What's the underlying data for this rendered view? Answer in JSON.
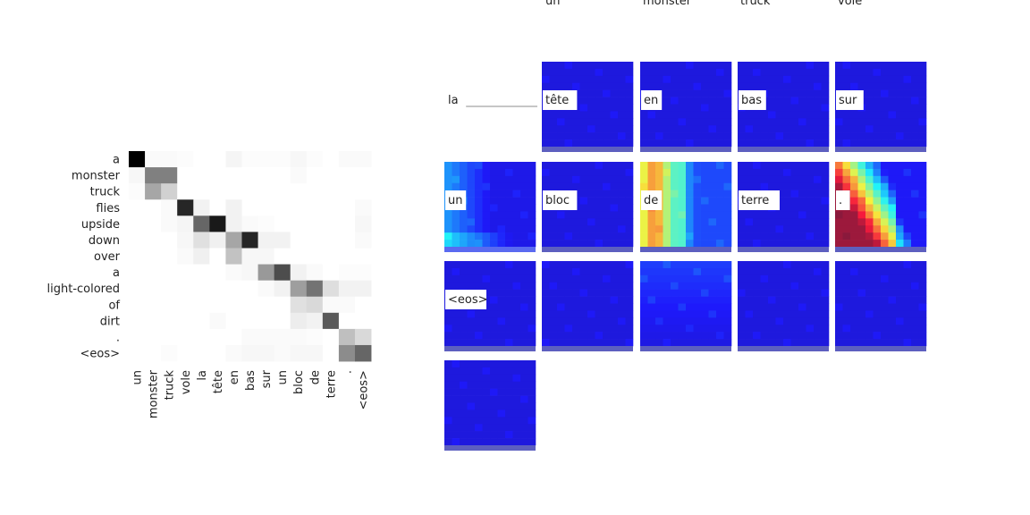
{
  "heatmap": {
    "rows": [
      "a",
      "monster",
      "truck",
      "flies",
      "upside",
      "down",
      "over",
      "a",
      "light-colored",
      "of",
      "dirt",
      ".",
      "<eos>"
    ],
    "cols": [
      "un",
      "monster",
      "truck",
      "vole",
      "la",
      "tête",
      "en",
      "bas",
      "sur",
      "un",
      "bloc",
      "de",
      "terre",
      ".",
      "<eos>"
    ]
  },
  "top_labels": [
    "un",
    "monster",
    "truck",
    "vole"
  ],
  "tiles": [
    {
      "label": "la",
      "kind": "none"
    },
    {
      "label": "tête",
      "kind": "dark"
    },
    {
      "label": "en",
      "kind": "dark"
    },
    {
      "label": "bas",
      "kind": "dark"
    },
    {
      "label": "sur",
      "kind": "dark"
    },
    {
      "label": "un",
      "kind": "edge-left"
    },
    {
      "label": "bloc",
      "kind": "dark"
    },
    {
      "label": "de",
      "kind": "bands"
    },
    {
      "label": "terre",
      "kind": "dark"
    },
    {
      "label": ".",
      "kind": "diagonal"
    },
    {
      "label": "<eos>",
      "kind": "dark"
    },
    {
      "label": "",
      "kind": "dark"
    },
    {
      "label": "",
      "kind": "soft"
    },
    {
      "label": "",
      "kind": "dark"
    },
    {
      "label": "",
      "kind": "dark"
    },
    {
      "label": "",
      "kind": "dark"
    }
  ],
  "chart_data": {
    "type": "heatmap",
    "title": "",
    "xlabel": "",
    "ylabel": "",
    "colormap": "grayscale (white = 0, black = 1)",
    "rows": [
      "a",
      "monster",
      "truck",
      "flies",
      "upside",
      "down",
      "over",
      "a",
      "light-colored",
      "of",
      "dirt",
      ".",
      "<eos>"
    ],
    "cols": [
      "un",
      "monster",
      "truck",
      "vole",
      "la",
      "tête",
      "en",
      "bas",
      "sur",
      "un",
      "bloc",
      "de",
      "terre",
      ".",
      "<eos>"
    ],
    "values": [
      [
        1.0,
        0.02,
        0.02,
        0.01,
        0.0,
        0.0,
        0.04,
        0.01,
        0.01,
        0.01,
        0.03,
        0.01,
        0.0,
        0.02,
        0.02
      ],
      [
        0.03,
        0.5,
        0.5,
        0.0,
        0.0,
        0.0,
        0.0,
        0.0,
        0.0,
        0.0,
        0.02,
        0.0,
        0.0,
        0.0,
        0.0
      ],
      [
        0.01,
        0.35,
        0.18,
        0.0,
        0.0,
        0.0,
        0.0,
        0.0,
        0.0,
        0.0,
        0.0,
        0.0,
        0.0,
        0.0,
        0.0
      ],
      [
        0.0,
        0.0,
        0.02,
        0.85,
        0.05,
        0.0,
        0.05,
        0.0,
        0.0,
        0.0,
        0.0,
        0.0,
        0.0,
        0.0,
        0.02
      ],
      [
        0.0,
        0.0,
        0.02,
        0.04,
        0.6,
        0.9,
        0.05,
        0.02,
        0.01,
        0.0,
        0.0,
        0.0,
        0.0,
        0.0,
        0.03
      ],
      [
        0.0,
        0.0,
        0.0,
        0.03,
        0.12,
        0.06,
        0.35,
        0.85,
        0.05,
        0.05,
        0.0,
        0.0,
        0.0,
        0.0,
        0.02
      ],
      [
        0.0,
        0.0,
        0.0,
        0.02,
        0.06,
        0.0,
        0.24,
        0.03,
        0.03,
        0.0,
        0.0,
        0.0,
        0.0,
        0.0,
        0.0
      ],
      [
        0.0,
        0.0,
        0.0,
        0.0,
        0.0,
        0.0,
        0.02,
        0.03,
        0.4,
        0.7,
        0.05,
        0.02,
        0.0,
        0.01,
        0.01
      ],
      [
        0.0,
        0.0,
        0.0,
        0.0,
        0.0,
        0.0,
        0.0,
        0.0,
        0.02,
        0.05,
        0.38,
        0.55,
        0.13,
        0.05,
        0.05
      ],
      [
        0.0,
        0.0,
        0.0,
        0.0,
        0.0,
        0.0,
        0.0,
        0.0,
        0.0,
        0.0,
        0.12,
        0.15,
        0.02,
        0.02,
        0.0
      ],
      [
        0.0,
        0.0,
        0.0,
        0.0,
        0.0,
        0.02,
        0.0,
        0.0,
        0.0,
        0.0,
        0.07,
        0.05,
        0.65,
        0.0,
        0.0
      ],
      [
        0.0,
        0.0,
        0.0,
        0.0,
        0.0,
        0.0,
        0.0,
        0.02,
        0.02,
        0.02,
        0.02,
        0.01,
        0.0,
        0.25,
        0.15
      ],
      [
        0.0,
        0.0,
        0.01,
        0.0,
        0.0,
        0.0,
        0.02,
        0.03,
        0.03,
        0.02,
        0.03,
        0.03,
        0.0,
        0.45,
        0.6
      ]
    ]
  }
}
